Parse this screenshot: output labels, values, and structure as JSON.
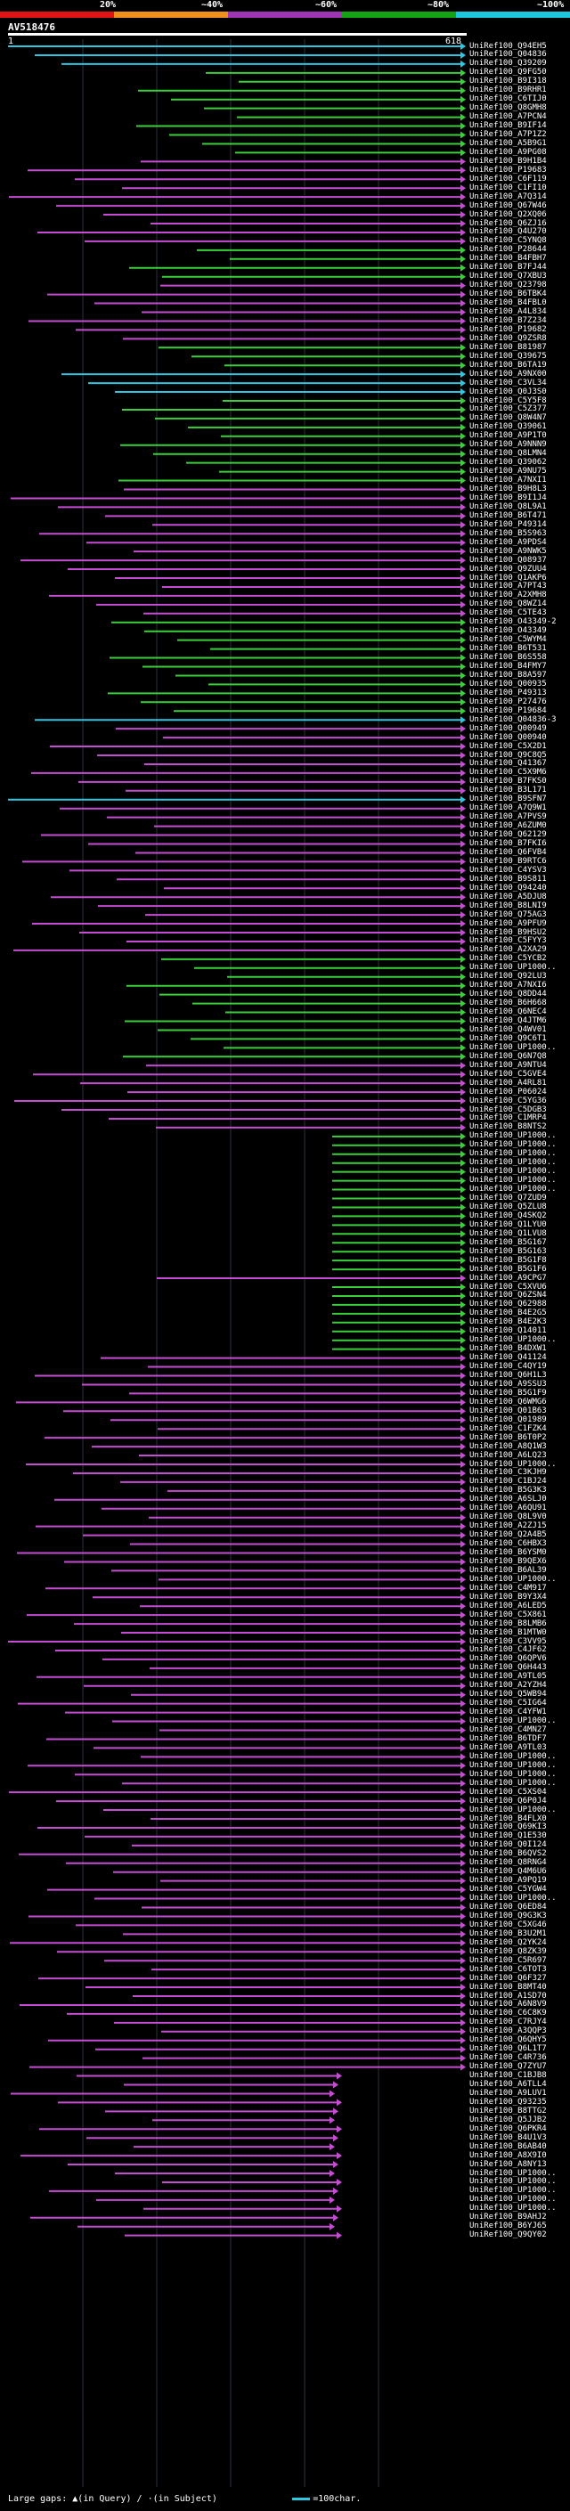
{
  "scale": {
    "ticks": [
      "20%",
      "~40%",
      "~60%",
      "~80%",
      "~100%"
    ],
    "colors": [
      "#e01414",
      "#ef8f1c",
      "#9e35b4",
      "#14a314",
      "#1ec8dc"
    ]
  },
  "query": {
    "name": "AV518476",
    "start": "1",
    "end": "618"
  },
  "colors": {
    "cyan": "#2fc6e2",
    "green": "#3ad03a",
    "magenta": "#c64cd4",
    "grid": "#2a3442"
  },
  "legend": {
    "large_gaps": "Large gaps:",
    "gap_query": "(in Query)",
    "gap_subject": "(in Subject)",
    "separator": "/",
    "scale": "=100char."
  },
  "hit_labels": [
    "UniRef100_Q94EH5",
    "UniRef100_Q04836",
    "UniRef100_Q39209",
    "UniRef100_Q9FG50",
    "UniRef100_B9I318",
    "UniRef100_B9RHR1",
    "UniRef100_C6TIJ0",
    "UniRef100_Q8GMH8",
    "UniRef100_A7PCN4",
    "UniRef100_B9IF14",
    "UniRef100_A7P1Z2",
    "UniRef100_A5B9G1",
    "UniRef100_A9PG08",
    "UniRef100_B9H1B4",
    "UniRef100_P19683",
    "UniRef100_C6F119",
    "UniRef100_C1FI10",
    "UniRef100_A7Q314",
    "UniRef100_Q67W46",
    "UniRef100_Q2XQ06",
    "UniRef100_Q6ZJ16",
    "UniRef100_Q4U270",
    "UniRef100_C5YNQ8",
    "UniRef100_P28644",
    "UniRef100_B4FBH7",
    "UniRef100_B7FJ44",
    "UniRef100_Q7XBU3",
    "UniRef100_Q23798",
    "UniRef100_B6TBK4",
    "UniRef100_B4FBL0",
    "UniRef100_A4L834",
    "UniRef100_B7Z234",
    "UniRef100_P19682",
    "UniRef100_Q9ZSR8",
    "UniRef100_B81987",
    "UniRef100_Q39675",
    "UniRef100_B6TA19",
    "UniRef100_A9NX00",
    "UniRef100_C3VL34",
    "UniRef100_Q0J3S0",
    "UniRef100_C5Y5F8",
    "UniRef100_C5Z377",
    "UniRef100_Q8W4N7",
    "UniRef100_Q39061",
    "UniRef100_A9P1T0",
    "UniRef100_A9NNN9",
    "UniRef100_Q8LMN4",
    "UniRef100_Q39062",
    "UniRef100_A9NU75",
    "UniRef100_A7NXI1",
    "UniRef100_B9H8L3",
    "UniRef100_B9I1J4",
    "UniRef100_Q8L9A1",
    "UniRef100_B6T471",
    "UniRef100_P49314",
    "UniRef100_B5S963",
    "UniRef100_A9PDS4",
    "UniRef100_A9NWK5",
    "UniRef100_Q08937",
    "UniRef100_Q9ZUU4",
    "UniRef100_Q1AKP6",
    "UniRef100_A7PT43",
    "UniRef100_A2XMH8",
    "UniRef100_Q8WZ14",
    "UniRef100_C5TE43",
    "UniRef100_O43349-2",
    "UniRef100_O43349",
    "UniRef100_C5WYM4",
    "UniRef100_B6T531",
    "UniRef100_B6S558",
    "UniRef100_B4FMY7",
    "UniRef100_B8A597",
    "UniRef100_Q00935",
    "UniRef100_P49313",
    "UniRef100_P27476",
    "UniRef100_P19684",
    "UniRef100_Q04836-3",
    "UniRef100_Q00949",
    "UniRef100_Q00940",
    "UniRef100_C5X2D1",
    "UniRef100_Q9C8Q5",
    "UniRef100_Q41367",
    "UniRef100_C5X9M6",
    "UniRef100_B7FKS0",
    "UniRef100_B3L171",
    "UniRef100_B9SFN7",
    "UniRef100_A7Q9W1",
    "UniRef100_A7PVS9",
    "UniRef100_A6ZUM0",
    "UniRef100_Q62129",
    "UniRef100_B7FKI6",
    "UniRef100_Q6FVB4",
    "UniRef100_B9RTC6",
    "UniRef100_C4YSV3",
    "UniRef100_B9S811",
    "UniRef100_Q94240",
    "UniRef100_A5DJU8",
    "UniRef100_B8LNI9",
    "UniRef100_Q75AG3",
    "UniRef100_A9PFU9",
    "UniRef100_B9HSU2",
    "UniRef100_C5FYY3",
    "UniRef100_A2XA29",
    "UniRef100_C5YCB2",
    "UniRef100_UP1000..",
    "UniRef100_Q92LU3",
    "UniRef100_A7NXI6",
    "UniRef100_Q8DD44",
    "UniRef100_B6H668",
    "UniRef100_Q6NEC4",
    "UniRef100_Q4JTM6",
    "UniRef100_Q4WV01",
    "UniRef100_Q9C6T1",
    "UniRef100_UP1000..",
    "UniRef100_Q6N7Q8",
    "UniRef100_A9NTU4",
    "UniRef100_C5GVE4",
    "UniRef100_A4RL81",
    "UniRef100_P06024",
    "UniRef100_C5YG36",
    "UniRef100_C5DGB3",
    "UniRef100_C1MRP4",
    "UniRef100_B8NTS2",
    "UniRef100_UP1000..",
    "UniRef100_UP1000..",
    "UniRef100_UP1000..",
    "UniRef100_UP1000..",
    "UniRef100_UP1000..",
    "UniRef100_UP1000..",
    "UniRef100_UP1000..",
    "UniRef100_Q7ZUD9",
    "UniRef100_Q5ZLU8",
    "UniRef100_Q4SKQ2",
    "UniRef100_Q1LYU0",
    "UniRef100_Q1LVU8",
    "UniRef100_B5G167",
    "UniRef100_B5G163",
    "UniRef100_B5G1F8",
    "UniRef100_B5G1F6",
    "UniRef100_A9CPG7",
    "UniRef100_C5XVU6",
    "UniRef100_Q6ZSN4",
    "UniRef100_Q62988",
    "UniRef100_B4E2G5",
    "UniRef100_B4E2K3",
    "UniRef100_Q14011",
    "UniRef100_UP1000..",
    "UniRef100_B4DXW1",
    "UniRef100_Q41124",
    "UniRef100_C4QY19",
    "UniRef100_Q6H1L3",
    "UniRef100_A9SSU3",
    "UniRef100_B5G1F9",
    "UniRef100_Q6WMG6",
    "UniRef100_Q01B63",
    "UniRef100_Q01989",
    "UniRef100_C1FZK4",
    "UniRef100_B6T0P2",
    "UniRef100_A8Q1W3",
    "UniRef100_A6LQ23",
    "UniRef100_UP1000..",
    "UniRef100_C3KJH9",
    "UniRef100_C1BJ24",
    "UniRef100_B5G3K3",
    "UniRef100_A6SLJ0",
    "UniRef100_A6QU91",
    "UniRef100_Q8L9V0",
    "UniRef100_A2ZJ15",
    "UniRef100_Q2A4B5",
    "UniRef100_C6HBX3",
    "UniRef100_B6YSM0",
    "UniRef100_B9QEX6",
    "UniRef100_B6AL39",
    "UniRef100_UP1000..",
    "UniRef100_C4M917",
    "UniRef100_B9Y3X4",
    "UniRef100_A6LED5",
    "UniRef100_C5X861",
    "UniRef100_B8LMB6",
    "UniRef100_B1MTW0",
    "UniRef100_C3VV95",
    "UniRef100_C4JF62",
    "UniRef100_Q6QPV6",
    "UniRef100_Q6H443",
    "UniRef100_A9TL05",
    "UniRef100_A2YZH4",
    "UniRef100_Q5WB94",
    "UniRef100_C5IG64",
    "UniRef100_C4YFW1",
    "UniRef100_UP1000..",
    "UniRef100_C4MN27",
    "UniRef100_B6TDF7",
    "UniRef100_A9TL03",
    "UniRef100_UP1000..",
    "UniRef100_UP1000..",
    "UniRef100_UP1000..",
    "UniRef100_UP1000..",
    "UniRef100_C5XS04",
    "UniRef100_Q6P0J4",
    "UniRef100_UP1000..",
    "UniRef100_B4FLX0",
    "UniRef100_Q69KI3",
    "UniRef100_Q1E530",
    "UniRef100_Q0I124",
    "UniRef100_B6QVS2",
    "UniRef100_Q8RNG4",
    "UniRef100_Q4M6U6",
    "UniRef100_A9PQ19",
    "UniRef100_C5YGW4",
    "UniRef100_UP1000..",
    "UniRef100_Q6ED84",
    "UniRef100_Q9G3K3",
    "UniRef100_C5XG46",
    "UniRef100_B3U2M1",
    "UniRef100_Q2YK24",
    "UniRef100_Q8ZK39",
    "UniRef100_C5R697",
    "UniRef100_C6TOT3",
    "UniRef100_Q6F327",
    "UniRef100_B8MT40",
    "UniRef100_A1SD70",
    "UniRef100_A6N8V9",
    "UniRef100_C6C8K9",
    "UniRef100_C7RJY4",
    "UniRef100_A3QQP3",
    "UniRef100_Q6QHY5",
    "UniRef100_Q6L1T7",
    "UniRef100_C4R736",
    "UniRef100_Q7ZYU7",
    "UniRef100_C1BJB8",
    "UniRef100_A6TLL4",
    "UniRef100_A9LUV1",
    "UniRef100_Q93235",
    "UniRef100_B8TTG2",
    "UniRef100_Q5JJB2",
    "UniRef100_Q6PKR4",
    "UniRef100_B4U1V3",
    "UniRef100_B6AB40",
    "UniRef100_A8X9I0",
    "UniRef100_A8NY13",
    "UniRef100_UP1000..",
    "UniRef100_UP1000..",
    "UniRef100_UP1000..",
    "UniRef100_UP1000..",
    "UniRef100_UP1000..",
    "UniRef100_B9AHJ2",
    "UniRef100_B6YJ65",
    "UniRef100_Q9QY02"
  ],
  "hit_colors": [
    "cyan",
    "cyan",
    "cyan",
    "green",
    "green",
    "green",
    "green",
    "green",
    "green",
    "green",
    "green",
    "green",
    "green",
    "magenta",
    "magenta",
    "magenta",
    "magenta",
    "magenta",
    "magenta",
    "magenta",
    "magenta",
    "magenta",
    "magenta",
    "green",
    "green",
    "green",
    "green",
    "magenta",
    "magenta",
    "magenta",
    "magenta",
    "magenta",
    "magenta",
    "magenta",
    "green",
    "green",
    "green",
    "cyan",
    "cyan",
    "cyan",
    "green",
    "green",
    "green",
    "green",
    "green",
    "green",
    "green",
    "green",
    "green",
    "green",
    "magenta",
    "magenta",
    "magenta",
    "magenta",
    "magenta",
    "magenta",
    "magenta",
    "magenta",
    "magenta",
    "magenta",
    "magenta",
    "magenta",
    "magenta",
    "magenta",
    "magenta",
    "green",
    "green",
    "green",
    "green",
    "green",
    "green",
    "green",
    "green",
    "green",
    "green",
    "green",
    "cyan",
    "magenta",
    "magenta",
    "magenta",
    "magenta",
    "magenta",
    "magenta",
    "magenta",
    "magenta",
    "cyan",
    "magenta",
    "magenta",
    "magenta",
    "magenta",
    "magenta",
    "magenta",
    "magenta",
    "magenta",
    "magenta",
    "magenta",
    "magenta",
    "magenta",
    "magenta",
    "magenta",
    "magenta",
    "magenta",
    "magenta",
    "green",
    "green",
    "green",
    "green",
    "green",
    "green",
    "green",
    "green",
    "green",
    "green",
    "green",
    "green",
    "magenta",
    "magenta",
    "magenta",
    "magenta",
    "magenta",
    "magenta",
    "magenta",
    "magenta",
    "green",
    "green",
    "green",
    "green",
    "green",
    "green",
    "green",
    "green",
    "green",
    "green",
    "green",
    "green",
    "green",
    "green",
    "green",
    "green",
    "magenta",
    "green",
    "green",
    "green",
    "green",
    "green",
    "green",
    "green",
    "green",
    "magenta",
    "magenta",
    "magenta",
    "magenta",
    "magenta",
    "magenta",
    "magenta",
    "magenta",
    "magenta",
    "magenta",
    "magenta",
    "magenta",
    "magenta",
    "magenta",
    "magenta",
    "magenta",
    "magenta",
    "magenta",
    "magenta",
    "magenta",
    "magenta",
    "magenta",
    "magenta",
    "magenta",
    "magenta",
    "magenta",
    "magenta",
    "magenta",
    "magenta",
    "magenta",
    "magenta",
    "magenta",
    "magenta",
    "magenta",
    "magenta",
    "magenta",
    "magenta",
    "magenta",
    "magenta",
    "magenta",
    "magenta",
    "magenta",
    "magenta",
    "magenta",
    "magenta",
    "magenta",
    "magenta",
    "magenta",
    "magenta",
    "magenta",
    "magenta",
    "magenta",
    "magenta",
    "magenta",
    "magenta",
    "magenta",
    "magenta",
    "magenta",
    "magenta",
    "magenta",
    "magenta",
    "magenta",
    "magenta",
    "magenta",
    "magenta",
    "magenta",
    "magenta",
    "magenta",
    "magenta",
    "magenta",
    "magenta",
    "magenta",
    "magenta",
    "magenta",
    "magenta",
    "magenta",
    "magenta",
    "magenta",
    "magenta",
    "magenta",
    "magenta",
    "magenta",
    "magenta",
    "magenta",
    "magenta",
    "magenta",
    "magenta",
    "magenta",
    "magenta",
    "magenta",
    "magenta",
    "magenta",
    "magenta",
    "magenta",
    "magenta",
    "magenta",
    "magenta",
    "magenta",
    "magenta",
    "magenta"
  ]
}
